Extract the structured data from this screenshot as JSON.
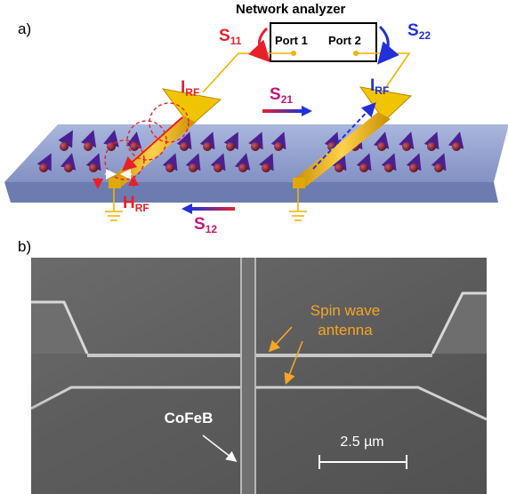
{
  "panel_a": {
    "label": "a)",
    "analyzer_title": "Network analyzer",
    "port1": "Port 1",
    "port2": "Port 2",
    "s11": {
      "main": "S",
      "sub": "11"
    },
    "s22": {
      "main": "S",
      "sub": "22"
    },
    "s21": {
      "main": "S",
      "sub": "21"
    },
    "s12": {
      "main": "S",
      "sub": "12"
    },
    "irf_left": {
      "main": "I",
      "sub": "RF"
    },
    "irf_right": {
      "main": "I",
      "sub": "RF"
    },
    "hrf": {
      "main": "H",
      "sub": "RF"
    }
  },
  "panel_b": {
    "label": "b)",
    "antenna_label_line1": "Spin wave",
    "antenna_label_line2": "antenna",
    "material_label": "CoFeB",
    "scale_bar_label": "2.5 µm"
  },
  "colors": {
    "red": "#e8202a",
    "blue": "#2230d8",
    "gold": "#f0b400",
    "antenna_label": "#f5a623",
    "slab": "#8f9ec9",
    "sem_bg": "#5c5c5c"
  }
}
